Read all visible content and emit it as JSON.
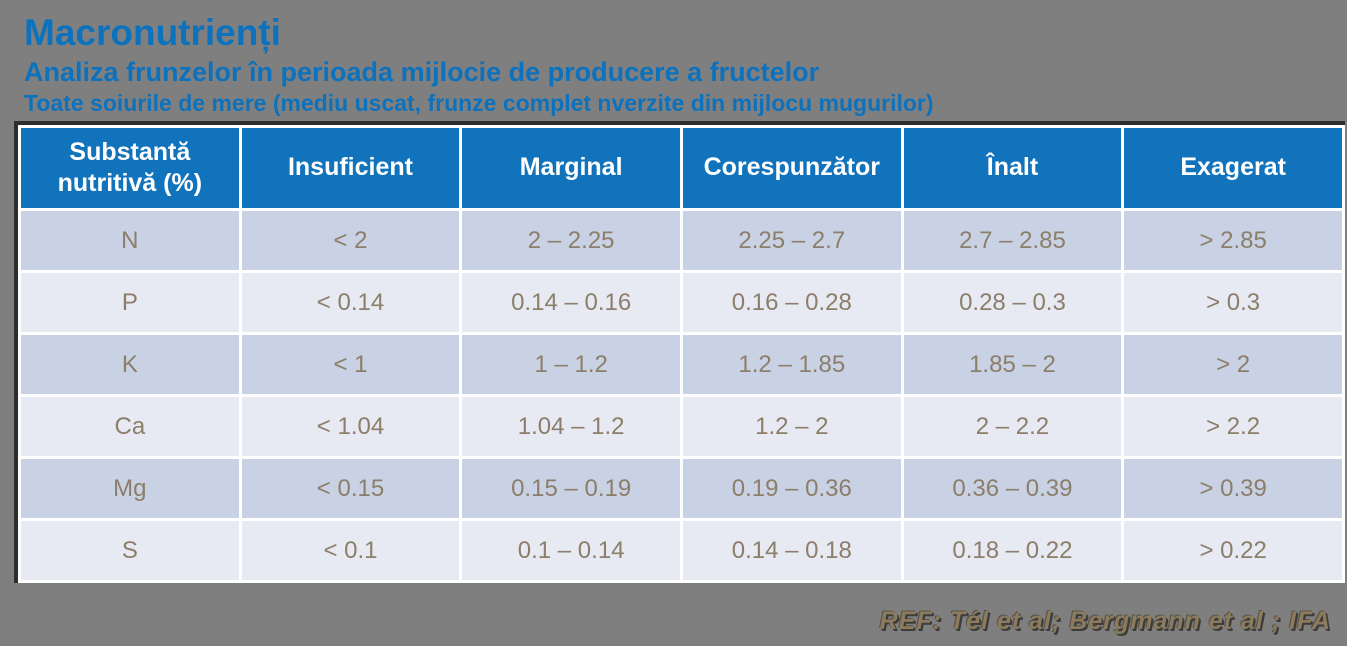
{
  "page": {
    "title": "Macronutrienți",
    "subtitle": "Analiza frunzelor în perioada mijlocie de producere a fructelor",
    "subtitle2": "Toate soiurile de mere (mediu uscat, frunze complet nverzite din mijlocu mugurilor)",
    "reference": "REF: Tél et al; Bergmann et al ; IFA"
  },
  "table": {
    "headers": [
      "Substantă nutritivă (%)",
      "Insuficient",
      "Marginal",
      "Corespunzător",
      "Înalt",
      "Exagerat"
    ],
    "rows": [
      {
        "nutrient": "N",
        "values": [
          "< 2",
          "2 – 2.25",
          "2.25 – 2.7",
          "2.7 – 2.85",
          "> 2.85"
        ]
      },
      {
        "nutrient": "P",
        "values": [
          "< 0.14",
          "0.14 – 0.16",
          "0.16 – 0.28",
          "0.28 – 0.3",
          "> 0.3"
        ]
      },
      {
        "nutrient": "K",
        "values": [
          "< 1",
          "1 – 1.2",
          "1.2 – 1.85",
          "1.85 – 2",
          "> 2"
        ]
      },
      {
        "nutrient": "Ca",
        "values": [
          "< 1.04",
          "1.04 – 1.2",
          "1.2 – 2",
          "2 – 2.2",
          "> 2.2"
        ]
      },
      {
        "nutrient": "Mg",
        "values": [
          "< 0.15",
          "0.15 – 0.19",
          "0.19 – 0.36",
          "0.36 – 0.39",
          "> 0.39"
        ]
      },
      {
        "nutrient": "S",
        "values": [
          "< 0.1",
          "0.1 – 0.14",
          "0.14 – 0.18",
          "0.18 – 0.22",
          "> 0.22"
        ]
      }
    ]
  },
  "colors": {
    "background": "#7F7F7F",
    "title_blue": "#0C72BD",
    "header_bg": "#1173BC",
    "row_odd": "#C8D2E4",
    "row_even": "#E7EAF3",
    "cell_text": "#8C7E69",
    "table_border_dark": "#2D2D2D",
    "reference_text": "#8C7B5D"
  }
}
